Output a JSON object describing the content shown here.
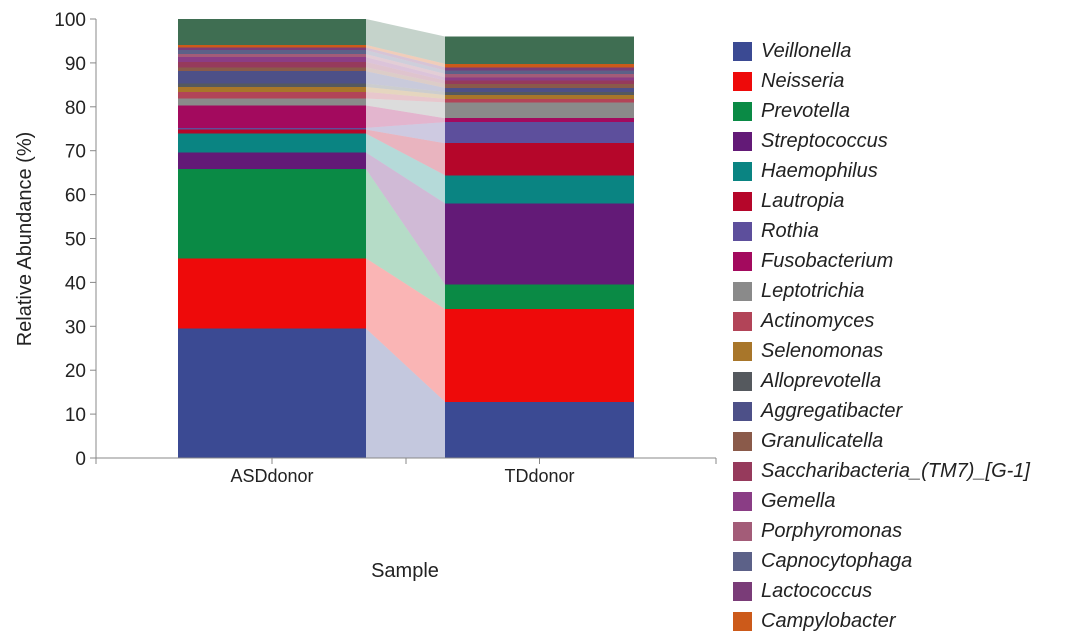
{
  "chart_data": {
    "type": "bar",
    "stacked": true,
    "normalized_percent": true,
    "categories": [
      "ASDdonor",
      "TDdonor"
    ],
    "xlabel": "Sample",
    "ylabel": "Relative Abundance (%)",
    "ylim": [
      0,
      100
    ],
    "yticks": [
      "0",
      "10",
      "20",
      "30",
      "40",
      "50",
      "60",
      "70",
      "80",
      "90",
      "100"
    ],
    "grid": false,
    "legend_position": "right",
    "series": [
      {
        "name": "Veillonella",
        "color": "#3b4a93",
        "values": [
          29.5,
          12.8
        ]
      },
      {
        "name": "Neisseria",
        "color": "#ee0a0a",
        "values": [
          16.0,
          21.1
        ]
      },
      {
        "name": "Prevotella",
        "color": "#0a8a45",
        "values": [
          20.3,
          5.6
        ]
      },
      {
        "name": "Streptococcus",
        "color": "#631a77",
        "values": [
          3.8,
          18.5
        ]
      },
      {
        "name": "Haemophilus",
        "color": "#0a8482",
        "values": [
          4.3,
          6.4
        ]
      },
      {
        "name": "Lautropia",
        "color": "#b5062a",
        "values": [
          0.9,
          7.3
        ]
      },
      {
        "name": "Rothia",
        "color": "#5d4f9c",
        "values": [
          0.4,
          4.8
        ]
      },
      {
        "name": "Fusobacterium",
        "color": "#a30a5e",
        "values": [
          5.1,
          0.9
        ]
      },
      {
        "name": "Leptotrichia",
        "color": "#8a8a8a",
        "values": [
          1.6,
          3.6
        ]
      },
      {
        "name": "Actinomyces",
        "color": "#b24458",
        "values": [
          1.5,
          0.8
        ]
      },
      {
        "name": "Selenomonas",
        "color": "#a8762a",
        "values": [
          1.1,
          0.9
        ]
      },
      {
        "name": "Alloprevotella",
        "color": "#55595e",
        "values": [
          0.8,
          0.7
        ]
      },
      {
        "name": "Aggregatibacter",
        "color": "#4d5088",
        "values": [
          2.8,
          0.9
        ]
      },
      {
        "name": "Granulicatella",
        "color": "#8a5a4a",
        "values": [
          0.9,
          0.9
        ]
      },
      {
        "name": "Saccharibacteria_(TM7)_[G-1]",
        "color": "#963a5c",
        "values": [
          1.2,
          0.8
        ]
      },
      {
        "name": "Gemella",
        "color": "#8a3d85",
        "values": [
          1.1,
          0.7
        ]
      },
      {
        "name": "Porphyromonas",
        "color": "#a35c78",
        "values": [
          0.7,
          0.8
        ]
      },
      {
        "name": "Capnocytophaga",
        "color": "#5c6188",
        "values": [
          0.9,
          0.8
        ]
      },
      {
        "name": "Lactococcus",
        "color": "#7a3c78",
        "values": [
          0.6,
          0.7
        ]
      },
      {
        "name": "Campylobacter",
        "color": "#cc5a1a",
        "values": [
          0.6,
          0.8
        ]
      },
      {
        "name": "",
        "color": "#3f6e52",
        "values": [
          5.9,
          6.2
        ]
      }
    ]
  }
}
